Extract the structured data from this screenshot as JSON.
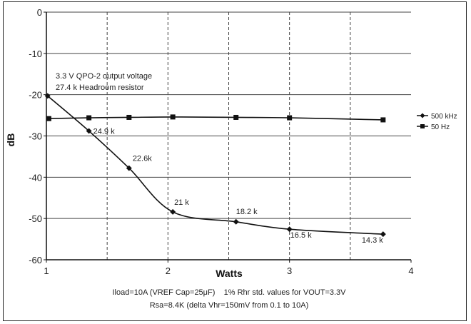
{
  "chart_data": {
    "type": "line",
    "title": "",
    "xlabel": "Watts",
    "ylabel": "dB",
    "xlim": [
      1,
      4
    ],
    "ylim": [
      -60,
      0
    ],
    "xticks": [
      1,
      2,
      3,
      4
    ],
    "yticks": [
      0,
      -10,
      -20,
      -30,
      -40,
      -50,
      -60
    ],
    "grid": {
      "horizontal": "solid",
      "vertical": "dashed"
    },
    "legend_position": "right",
    "annotation": [
      "3.3 V QPO-2 output voltage",
      "27.4 k Headroom resistor"
    ],
    "footnotes": [
      "Iload=10A (VREF Cap=25μF)    1% Rhr std. values for VOUT=3.3V",
      "Rsa=8.4K (delta Vhr=150mV from 0.1 to 10A)"
    ],
    "series": [
      {
        "name": "500 kHz",
        "marker": "diamond",
        "color": "#111111",
        "x": [
          1.01,
          1.35,
          1.68,
          2.04,
          2.56,
          3.0,
          3.77
        ],
        "y": [
          -20.3,
          -28.8,
          -37.8,
          -48.4,
          -50.8,
          -52.6,
          -53.8
        ],
        "point_labels": [
          "",
          "24.9 k",
          "22.6k",
          "21 k",
          "18.2 k",
          "16.5 k",
          "14.3 k"
        ]
      },
      {
        "name": "50 Hz",
        "marker": "square",
        "color": "#111111",
        "x": [
          1.02,
          1.35,
          1.68,
          2.04,
          2.56,
          3.0,
          3.77
        ],
        "y": [
          -25.8,
          -25.6,
          -25.5,
          -25.4,
          -25.5,
          -25.6,
          -26.1
        ],
        "point_labels": [
          "",
          "",
          "",
          "",
          "",
          "",
          ""
        ]
      }
    ]
  }
}
